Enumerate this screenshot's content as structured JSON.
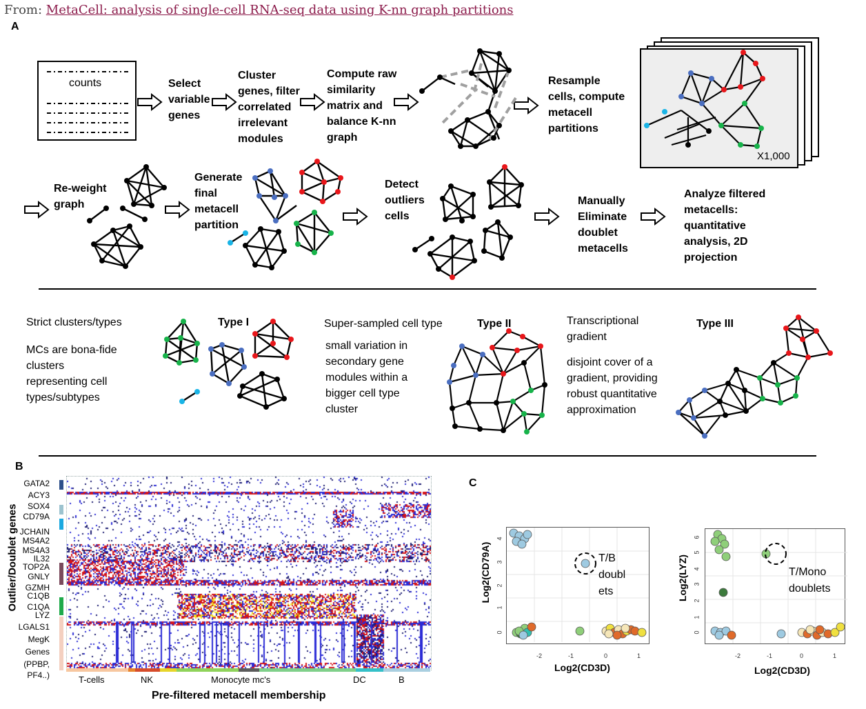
{
  "source": {
    "prefix": "From: ",
    "title": "MetaCell: analysis of single-cell RNA-seq data using K-nn graph partitions"
  },
  "panel_a": {
    "letter": "A",
    "counts_label": "counts",
    "steps": {
      "select": "Select\nvariable\ngenes",
      "cluster": "Cluster\ngenes, filter\ncorrelated\nirrelevant\nmodules",
      "compute": "Compute raw\nsimilarity\nmatrix and\nbalance K-nn\ngraph",
      "resample": "Resample\ncells, compute\nmetacell\npartitions",
      "x1000": "X1,000",
      "reweight": "Re-weight\ngraph",
      "generate": "Generate\nfinal\nmetacell\npartition",
      "detect": "Detect\noutliers\ncells",
      "manual": "Manually\nEliminate\ndoublet\nmetacells",
      "analyze": "Analyze filtered\nmetacells:\nquantitative\nanalysis, 2D\nprojection"
    },
    "types": {
      "strict_title": "Strict clusters/types",
      "strict_desc": "MCs are bona-fide\nclusters\nrepresenting cell\ntypes/subtypes",
      "type1": "Type I",
      "super_title": "Super-sampled cell type",
      "super_desc": "small variation in\nsecondary gene\nmodules within a\nbigger cell type\ncluster",
      "type2": "Type II",
      "grad_title": "Transcriptional\ngradient",
      "grad_desc": "disjoint cover of a\ngradient, providing\nrobust quantitative\napproximation",
      "type3": "Type III"
    },
    "colors": {
      "node": "#000000",
      "red": "#e8161a",
      "blue": "#4a6ec0",
      "green": "#17b34a",
      "cyan": "#19b4e6",
      "arrow_grey": "#a0a0a0"
    }
  },
  "panel_b": {
    "letter": "B",
    "ylabel": "Outlier/Doublet genes",
    "xlabel": "Pre-filtered metacell membership",
    "genes": [
      "GATA2",
      "ACY3",
      "SOX4",
      "CD79A",
      "JCHAIN",
      "MS4A2",
      "MS4A3",
      "IL32",
      "TOP2A",
      "GNLY",
      "GZMH",
      "C1QB",
      "C1QA",
      "LYZ",
      "LGALS1",
      "MegK",
      "Genes",
      "(PPBP,",
      "PF4..)"
    ],
    "groups": [
      "T-cells",
      "NK",
      "Monocyte mc's",
      "DC",
      "B"
    ],
    "colors": {
      "low": "#ffffff",
      "mid": "#2b2bd6",
      "high": "#d4141a",
      "max": "#f2e020"
    }
  },
  "panel_c": {
    "letter": "C",
    "plots": [
      {
        "ylabel": "Log2(CD79A)",
        "xlabel": "Log2(CD3D)",
        "annotation": "T/B\ndoubl\nets",
        "x_ticks": [
          "-2",
          "-1",
          "0",
          "1"
        ],
        "y_ticks": [
          "0",
          "1",
          "2",
          "3",
          "4"
        ]
      },
      {
        "ylabel": "Log2(LYZ)",
        "xlabel": "Log2(CD3D)",
        "annotation": "T/Mono\ndoublets",
        "x_ticks": [
          "-2",
          "-1",
          "0",
          "1"
        ],
        "y_ticks": [
          "0",
          "1",
          "2",
          "3",
          "4",
          "5",
          "6"
        ]
      }
    ]
  }
}
